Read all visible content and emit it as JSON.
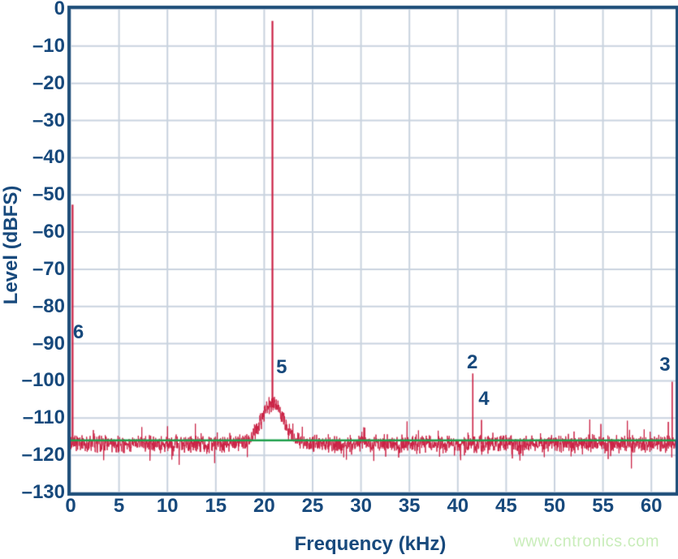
{
  "watermark": {
    "text": "www.cntronics.com"
  },
  "colors": {
    "trace": "#cb2245",
    "reference_line": "#1fa14c",
    "axis_text": "#17497c",
    "plot_border": "#1e4e79",
    "gridline": "#c9d3df",
    "background": "#ffffff",
    "watermark": "#c9edba"
  },
  "chart_data": {
    "type": "line",
    "title": "",
    "xlabel": "Frequency (kHz)",
    "ylabel": "Level (dBFS)",
    "xlim": [
      0,
      62.5
    ],
    "ylim": [
      -130,
      0
    ],
    "grid": true,
    "legend": "none",
    "x_ticks": [
      0,
      5,
      10,
      15,
      20,
      25,
      30,
      35,
      40,
      45,
      50,
      55,
      60
    ],
    "x_tick_labels": [
      "0",
      "5",
      "10",
      "15",
      "20",
      "25",
      "30",
      "35",
      "40",
      "45",
      "50",
      "55",
      "60"
    ],
    "y_ticks": [
      0,
      -10,
      -20,
      -30,
      -40,
      -50,
      -60,
      -70,
      -80,
      -90,
      -100,
      -110,
      -120,
      -130
    ],
    "y_tick_labels": [
      "0",
      "–10",
      "–20",
      "–30",
      "–40",
      "–50",
      "–60",
      "–70",
      "–80",
      "–90",
      "–100",
      "–110",
      "–120",
      "–130"
    ],
    "noise_floor_dbfs": -117,
    "noise_jitter_db": 2.7,
    "reference_line_dbfs": -116,
    "noise_skirt": {
      "center_khz": 20.85,
      "sigma_khz": 1.15,
      "peak_dbfs": -106
    },
    "tones": [
      {
        "freq_khz": 20.85,
        "level_dbfs": -3.2,
        "note": "fundamental"
      },
      {
        "freq_khz": 0.2,
        "level_dbfs": -52.6,
        "marker": "6"
      },
      {
        "freq_khz": 41.55,
        "level_dbfs": -98.0,
        "marker": "2"
      },
      {
        "freq_khz": 42.45,
        "level_dbfs": -110.5,
        "marker": "4"
      },
      {
        "freq_khz": 61.75,
        "level_dbfs": -111.0,
        "note": "spur"
      },
      {
        "freq_khz": 62.15,
        "level_dbfs": -100.2,
        "marker": "3"
      }
    ],
    "harmonic_markers": [
      {
        "text": "2",
        "pos_khz_db": [
          41.5,
          -95.0
        ]
      },
      {
        "text": "3",
        "pos_khz_db": [
          61.4,
          -95.8
        ]
      },
      {
        "text": "4",
        "pos_khz_db": [
          42.7,
          -105.0
        ]
      },
      {
        "text": "5",
        "pos_khz_db": [
          21.8,
          -96.5
        ]
      },
      {
        "text": "6",
        "pos_khz_db": [
          0.8,
          -87.0
        ]
      }
    ]
  }
}
